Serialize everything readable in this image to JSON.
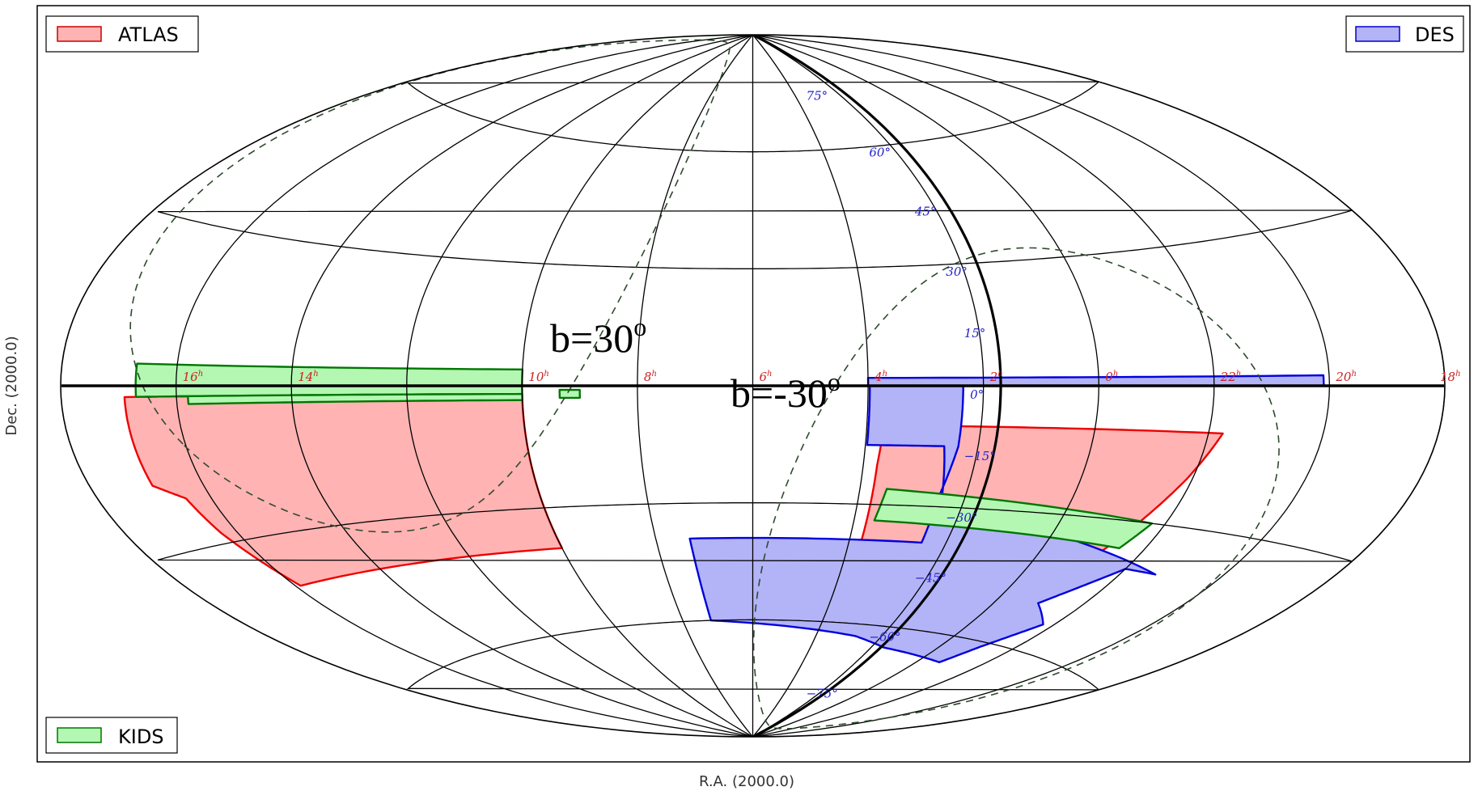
{
  "projection": "aitoff",
  "xlabel": "R.A. (2000.0)",
  "ylabel": "Dec. (2000.0)",
  "ra_tick_labels": [
    {
      "text": "18",
      "sup": "h",
      "ra_h": 18,
      "offset_deg": 7
    },
    {
      "text": "16",
      "sup": "h",
      "ra_h": 16,
      "offset_deg": 0
    },
    {
      "text": "14",
      "sup": "h",
      "ra_h": 14,
      "offset_deg": 0
    },
    {
      "text": "10",
      "sup": "h",
      "ra_h": 10,
      "offset_deg": 0
    },
    {
      "text": "8",
      "sup": "h",
      "ra_h": 8,
      "offset_deg": 0
    },
    {
      "text": "6",
      "sup": "h",
      "ra_h": 6,
      "offset_deg": 0
    },
    {
      "text": "4",
      "sup": "h",
      "ra_h": 4,
      "offset_deg": 0
    },
    {
      "text": "2",
      "sup": "h",
      "ra_h": 2,
      "offset_deg": 0
    },
    {
      "text": "0",
      "sup": "h",
      "ra_h": 0,
      "offset_deg": 0
    },
    {
      "text": "22",
      "sup": "h",
      "ra_h": 22,
      "offset_deg": 0
    },
    {
      "text": "20",
      "sup": "h",
      "ra_h": 20,
      "offset_deg": 0
    }
  ],
  "dec_tick_labels": [
    {
      "text": "75°",
      "dec": 75
    },
    {
      "text": "60°",
      "dec": 60
    },
    {
      "text": "45°",
      "dec": 45
    },
    {
      "text": "30°",
      "dec": 30
    },
    {
      "text": "15°",
      "dec": 15
    },
    {
      "text": "0°",
      "dec": 0
    },
    {
      "text": "−15°",
      "dec": -15
    },
    {
      "text": "−30°",
      "dec": -30
    },
    {
      "text": "−45°",
      "dec": -45
    },
    {
      "text": "−60°",
      "dec": -60
    },
    {
      "text": "−75°",
      "dec": -75
    }
  ],
  "graticule": {
    "dec_lines": [
      -60,
      -30,
      30,
      60
    ],
    "ra_lines_hours": [
      0,
      2,
      4,
      6,
      8,
      10,
      12,
      14,
      16,
      18,
      20,
      22
    ],
    "bold_ra_hours": [
      1.7
    ],
    "central_ra_h": 6
  },
  "galactic_curves": [
    {
      "label": "b=30",
      "sup": "o",
      "b_deg": 30
    },
    {
      "label": "b=-30",
      "sup": "o",
      "b_deg": -30
    }
  ],
  "legend": [
    {
      "label": "ATLAS",
      "fill": "#ffb3b3",
      "stroke": "#cc0000",
      "position": "top-left"
    },
    {
      "label": "DES",
      "fill": "#b3b3f7",
      "stroke": "#0000cc",
      "position": "top-right"
    },
    {
      "label": "KIDS",
      "fill": "#b3f7b3",
      "stroke": "#007700",
      "position": "bottom-left"
    }
  ],
  "surveys": [
    {
      "name": "ATLAS",
      "fill": "#ffb3b3",
      "stroke": "#ee0000",
      "footprints": [
        [
          [
            15.8,
            -2
          ],
          [
            10,
            -2
          ],
          [
            10,
            -40
          ],
          [
            15.9,
            -40
          ],
          [
            16.3,
            -28
          ],
          [
            16.45,
            -21
          ],
          [
            16.9,
            -18
          ],
          [
            16.9,
            -2
          ]
        ],
        [
          [
            3.7,
            -10
          ],
          [
            21.75,
            -10
          ],
          [
            22.1,
            -20
          ],
          [
            22.7,
            -35
          ],
          [
            23.0,
            -42
          ],
          [
            3.75,
            -40
          ],
          [
            3.75,
            -20
          ]
        ]
      ]
    },
    {
      "name": "DES",
      "fill": "#b3b3f7",
      "stroke": "#0000dd",
      "footprints": [
        [
          [
            4,
            2
          ],
          [
            20.1,
            2
          ],
          [
            20.1,
            0
          ],
          [
            4,
            0
          ]
        ],
        [
          [
            3.97,
            0
          ],
          [
            2.35,
            0
          ],
          [
            2.35,
            -15
          ],
          [
            2.5,
            -28
          ],
          [
            2.5,
            -39
          ],
          [
            7.3,
            -39
          ],
          [
            7.2,
            -60
          ],
          [
            2.8,
            -63
          ],
          [
            1.6,
            -65
          ],
          [
            23.3,
            -66
          ],
          [
            22.9,
            -61
          ],
          [
            22.25,
            -54
          ],
          [
            23.0,
            -50
          ],
          [
            22.0,
            -40
          ],
          [
            21.3,
            -40
          ],
          [
            1.2,
            -32
          ],
          [
            2.4,
            -30
          ],
          [
            2.6,
            -15
          ],
          [
            3.97,
            -15
          ]
        ]
      ]
    },
    {
      "name": "KIDS",
      "fill": "#b3f7b3",
      "stroke": "#007700",
      "footprints": [
        [
          [
            16.7,
            4
          ],
          [
            10,
            4
          ],
          [
            10,
            -2
          ],
          [
            15.9,
            -2
          ],
          [
            16.7,
            -2
          ]
        ],
        [
          [
            15.95,
            -2
          ],
          [
            10,
            -2
          ],
          [
            10,
            -3.5
          ],
          [
            15.8,
            -3.5
          ],
          [
            15.8,
            -2
          ]
        ],
        [
          [
            9.35,
            -1
          ],
          [
            9.0,
            -1
          ],
          [
            9.0,
            -3
          ],
          [
            9.35,
            -3
          ]
        ],
        [
          [
            3.5,
            -26
          ],
          [
            22.25,
            -30
          ],
          [
            22.5,
            -36
          ],
          [
            3.6,
            -34
          ]
        ]
      ]
    }
  ],
  "colors": {
    "graticule": "#000000",
    "galactic_curve": "#2e4a2e",
    "ra_labels": "#cc2222",
    "dec_labels": "#2222cc"
  }
}
